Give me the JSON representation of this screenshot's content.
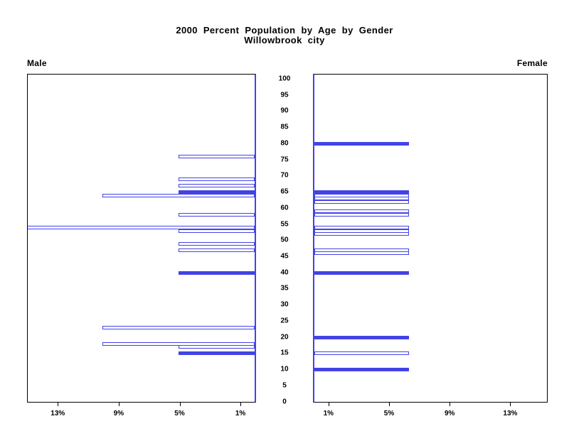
{
  "title": {
    "line1": "2000 Percent Population by Age by Gender",
    "line2": "Willowbrook city"
  },
  "axis_labels": {
    "male": "Male",
    "female": "Female"
  },
  "colors": {
    "bar": "#4343e6",
    "border": "#000000",
    "background": "#ffffff",
    "text": "#000000"
  },
  "chart_data": {
    "type": "bar",
    "variant": "population-pyramid",
    "title": "2000 Percent Population by Age by Gender",
    "subtitle": "Willowbrook city",
    "legend": "none",
    "grid": "off",
    "orientation": "horizontal bars; Male panel on left (bars grow leftward), Female panel on right (bars grow rightward), single-year-of-age bars",
    "bar_styles": {
      "hollow": "white fill with blue outline",
      "filled": "solid blue fill"
    },
    "age_axis": {
      "min": 0,
      "max": 100,
      "step": 5,
      "position": "center column between panels",
      "labels": [
        "100",
        "95",
        "90",
        "85",
        "80",
        "75",
        "70",
        "65",
        "60",
        "55",
        "50",
        "45",
        "40",
        "35",
        "30",
        "25",
        "20",
        "15",
        "10",
        "5",
        "0"
      ]
    },
    "percent_axis": {
      "max_percent": 15,
      "male_ticks": [
        {
          "value": 13,
          "label": "13%"
        },
        {
          "value": 9,
          "label": "9%"
        },
        {
          "value": 5,
          "label": "5%"
        },
        {
          "value": 1,
          "label": "1%"
        }
      ],
      "female_ticks": [
        {
          "value": 1,
          "label": "1%"
        },
        {
          "value": 5,
          "label": "5%"
        },
        {
          "value": 9,
          "label": "9%"
        },
        {
          "value": 13,
          "label": "13%"
        }
      ]
    },
    "series": [
      {
        "name": "Male",
        "side": "left",
        "bars": [
          {
            "age": 76,
            "pct": 5,
            "filled": false
          },
          {
            "age": 69,
            "pct": 5,
            "filled": false
          },
          {
            "age": 67,
            "pct": 5,
            "filled": false
          },
          {
            "age": 65,
            "pct": 5,
            "filled": true
          },
          {
            "age": 64,
            "pct": 10,
            "filled": false
          },
          {
            "age": 58,
            "pct": 5,
            "filled": false
          },
          {
            "age": 54,
            "pct": 15,
            "filled": false
          },
          {
            "age": 53,
            "pct": 5,
            "filled": false
          },
          {
            "age": 49,
            "pct": 5,
            "filled": false
          },
          {
            "age": 47,
            "pct": 5,
            "filled": false
          },
          {
            "age": 40,
            "pct": 5,
            "filled": true
          },
          {
            "age": 23,
            "pct": 10,
            "filled": false
          },
          {
            "age": 18,
            "pct": 10,
            "filled": false
          },
          {
            "age": 17,
            "pct": 5,
            "filled": false
          },
          {
            "age": 15,
            "pct": 5,
            "filled": true
          }
        ]
      },
      {
        "name": "Female",
        "side": "right",
        "bars": [
          {
            "age": 80,
            "pct": 6.25,
            "filled": true
          },
          {
            "age": 65,
            "pct": 6.25,
            "filled": true
          },
          {
            "age": 64,
            "pct": 6.25,
            "filled": false
          },
          {
            "age": 63,
            "pct": 6.25,
            "filled": false
          },
          {
            "age": 62,
            "pct": 6.25,
            "filled": false
          },
          {
            "age": 59,
            "pct": 6.25,
            "filled": false
          },
          {
            "age": 58,
            "pct": 6.25,
            "filled": false
          },
          {
            "age": 54,
            "pct": 6.25,
            "filled": false
          },
          {
            "age": 53,
            "pct": 6.25,
            "filled": false
          },
          {
            "age": 52,
            "pct": 6.25,
            "filled": false
          },
          {
            "age": 47,
            "pct": 6.25,
            "filled": false
          },
          {
            "age": 46,
            "pct": 6.25,
            "filled": false
          },
          {
            "age": 40,
            "pct": 6.25,
            "filled": true
          },
          {
            "age": 20,
            "pct": 6.25,
            "filled": true
          },
          {
            "age": 15,
            "pct": 6.25,
            "filled": false
          },
          {
            "age": 10,
            "pct": 6.25,
            "filled": true
          }
        ]
      }
    ]
  }
}
